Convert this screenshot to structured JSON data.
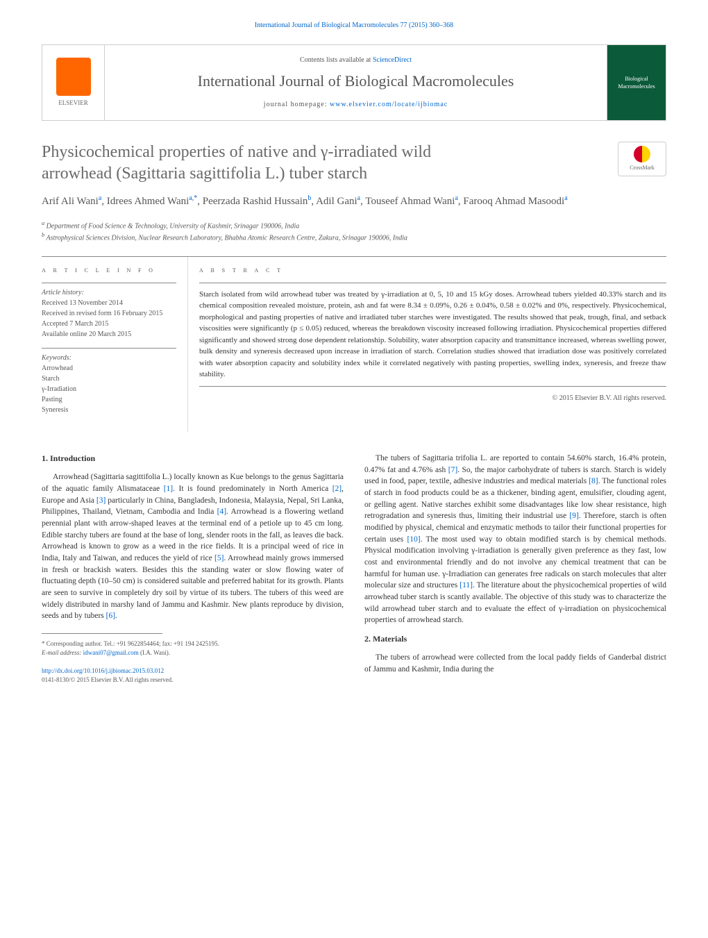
{
  "header_citation": "International Journal of Biological Macromolecules 77 (2015) 360–368",
  "banner": {
    "contents_prefix": "Contents lists available at ",
    "contents_link": "ScienceDirect",
    "journal_name": "International Journal of Biological Macromolecules",
    "homepage_prefix": "journal homepage: ",
    "homepage_url": "www.elsevier.com/locate/ijbiomac",
    "elsevier_label": "ELSEVIER",
    "cover_text": "Biological Macromolecules"
  },
  "title_line1": "Physicochemical properties of native and γ-irradiated wild",
  "title_line2": "arrowhead (Sagittaria sagittifolia L.) tuber starch",
  "crossmark_label": "CrossMark",
  "authors_html": "Arif Ali Wani",
  "authors": [
    {
      "name": "Arif Ali Wani",
      "sup": "a"
    },
    {
      "name": "Idrees Ahmed Wani",
      "sup": "a,*"
    },
    {
      "name": "Peerzada Rashid Hussain",
      "sup": "b"
    },
    {
      "name": "Adil Gani",
      "sup": "a"
    },
    {
      "name": "Touseef Ahmad Wani",
      "sup": "a"
    },
    {
      "name": "Farooq Ahmad Masoodi",
      "sup": "a"
    }
  ],
  "affiliations": {
    "a": "Department of Food Science & Technology, University of Kashmir, Srinagar 190006, India",
    "b": "Astrophysical Sciences Division, Nuclear Research Laboratory, Bhabha Atomic Research Centre, Zakura, Srinagar 190006, India"
  },
  "article_info": {
    "header": "A R T I C L E   I N F O",
    "history_label": "Article history:",
    "received": "Received 13 November 2014",
    "revised": "Received in revised form 16 February 2015",
    "accepted": "Accepted 7 March 2015",
    "online": "Available online 20 March 2015",
    "keywords_label": "Keywords:",
    "keywords": [
      "Arrowhead",
      "Starch",
      "γ-Irradiation",
      "Pasting",
      "Syneresis"
    ]
  },
  "abstract": {
    "header": "A B S T R A C T",
    "text": "Starch isolated from wild arrowhead tuber was treated by γ-irradiation at 0, 5, 10 and 15 kGy doses. Arrowhead tubers yielded 40.33% starch and its chemical composition revealed moisture, protein, ash and fat were 8.34 ± 0.09%, 0.26 ± 0.04%, 0.58 ± 0.02% and 0%, respectively. Physicochemical, morphological and pasting properties of native and irradiated tuber starches were investigated. The results showed that peak, trough, final, and setback viscosities were significantly (p ≤ 0.05) reduced, whereas the breakdown viscosity increased following irradiation. Physicochemical properties differed significantly and showed strong dose dependent relationship. Solubility, water absorption capacity and transmittance increased, whereas swelling power, bulk density and syneresis decreased upon increase in irradiation of starch. Correlation studies showed that irradiation dose was positively correlated with water absorption capacity and solubility index while it correlated negatively with pasting properties, swelling index, syneresis, and freeze thaw stability.",
    "copyright": "© 2015 Elsevier B.V. All rights reserved."
  },
  "sections": {
    "intro_heading": "1. Introduction",
    "intro_col1_p1a": "Arrowhead (Sagittaria sagittifolia L.) locally known as Kue belongs to the genus Sagittaria of the aquatic family Alismataceae ",
    "intro_col1_ref1": "[1]",
    "intro_col1_p1b": ". It is found predominately in North America ",
    "intro_col1_ref2": "[2]",
    "intro_col1_p1c": ", Europe and Asia ",
    "intro_col1_ref3": "[3]",
    "intro_col1_p1d": " particularly in China, Bangladesh, Indonesia, Malaysia, Nepal, Sri Lanka, Philippines, Thailand, Vietnam, Cambodia and India ",
    "intro_col1_ref4": "[4]",
    "intro_col1_p1e": ". Arrowhead is a flowering wetland perennial plant with arrow-shaped leaves at the terminal end of a petiole up to 45 cm long. Edible starchy tubers are found at the base of long, slender roots in the fall, as leaves die back. Arrowhead is known to grow as a weed in the rice fields. It is a principal weed of rice in India, Italy and Taiwan, and reduces the yield of rice ",
    "intro_col1_ref5": "[5]",
    "intro_col1_p1f": ". Arrowhead mainly grows immersed in fresh or brackish waters. Besides this the standing water or slow flowing water of fluctuating depth (10–50 cm) is considered suitable and preferred habitat for its growth. Plants are seen to survive in completely dry soil by virtue of its tubers. The tubers of this weed are widely distributed in marshy land of Jammu and Kashmir. New plants reproduce by division, seeds and by tubers ",
    "intro_col1_ref6": "[6]",
    "intro_col1_p1g": ".",
    "intro_col2_p1a": "The tubers of Sagittaria trifolia L. are reported to contain 54.60% starch, 16.4% protein, 0.47% fat and 4.76% ash ",
    "intro_col2_ref7": "[7]",
    "intro_col2_p1b": ". So, the major carbohydrate of tubers is starch. Starch is widely used in food, paper, textile, adhesive industries and medical materials ",
    "intro_col2_ref8": "[8]",
    "intro_col2_p1c": ". The functional roles of starch in food products could be as a thickener, binding agent, emulsifier, clouding agent, or gelling agent. Native starches exhibit some disadvantages like low shear resistance, high retrogradation and syneresis thus, limiting their industrial use ",
    "intro_col2_ref9": "[9]",
    "intro_col2_p1d": ". Therefore, starch is often modified by physical, chemical and enzymatic methods to tailor their functional properties for certain uses ",
    "intro_col2_ref10": "[10]",
    "intro_col2_p1e": ". The most used way to obtain modified starch is by chemical methods. Physical modification involving γ-irradiation is generally given preference as they fast, low cost and environmental friendly and do not involve any chemical treatment that can be harmful for human use. γ-Irradiation can generates free radicals on starch molecules that alter molecular size and structures ",
    "intro_col2_ref11": "[11]",
    "intro_col2_p1f": ". The literature about the physicochemical properties of wild arrowhead tuber starch is scantly available. The objective of this study was to characterize the wild arrowhead tuber starch and to evaluate the effect of γ-irradiation on physicochemical properties of arrowhead starch.",
    "materials_heading": "2. Materials",
    "materials_p1": "The tubers of arrowhead were collected from the local paddy fields of Ganderbal district of Jammu and Kashmir, India during the"
  },
  "footnote": {
    "corresponding": "* Corresponding author. Tel.: +91 9622854464; fax: +91 194 2425195.",
    "email_label": "E-mail address: ",
    "email": "idwani07@gmail.com",
    "email_suffix": " (I.A. Wani)."
  },
  "doi": {
    "url": "http://dx.doi.org/10.1016/j.ijbiomac.2015.03.012",
    "issn_line": "0141-8130/© 2015 Elsevier B.V. All rights reserved."
  },
  "colors": {
    "link": "#0066cc",
    "text": "#333333",
    "muted": "#555555",
    "elsevier_orange": "#ff6600",
    "cover_green": "#0b5a3a",
    "border": "#cccccc",
    "rule": "#888888"
  },
  "typography": {
    "body_pt": 11.5,
    "title_pt": 24,
    "journal_name_pt": 22,
    "authors_pt": 15,
    "small_pt": 10,
    "footnote_pt": 9
  }
}
